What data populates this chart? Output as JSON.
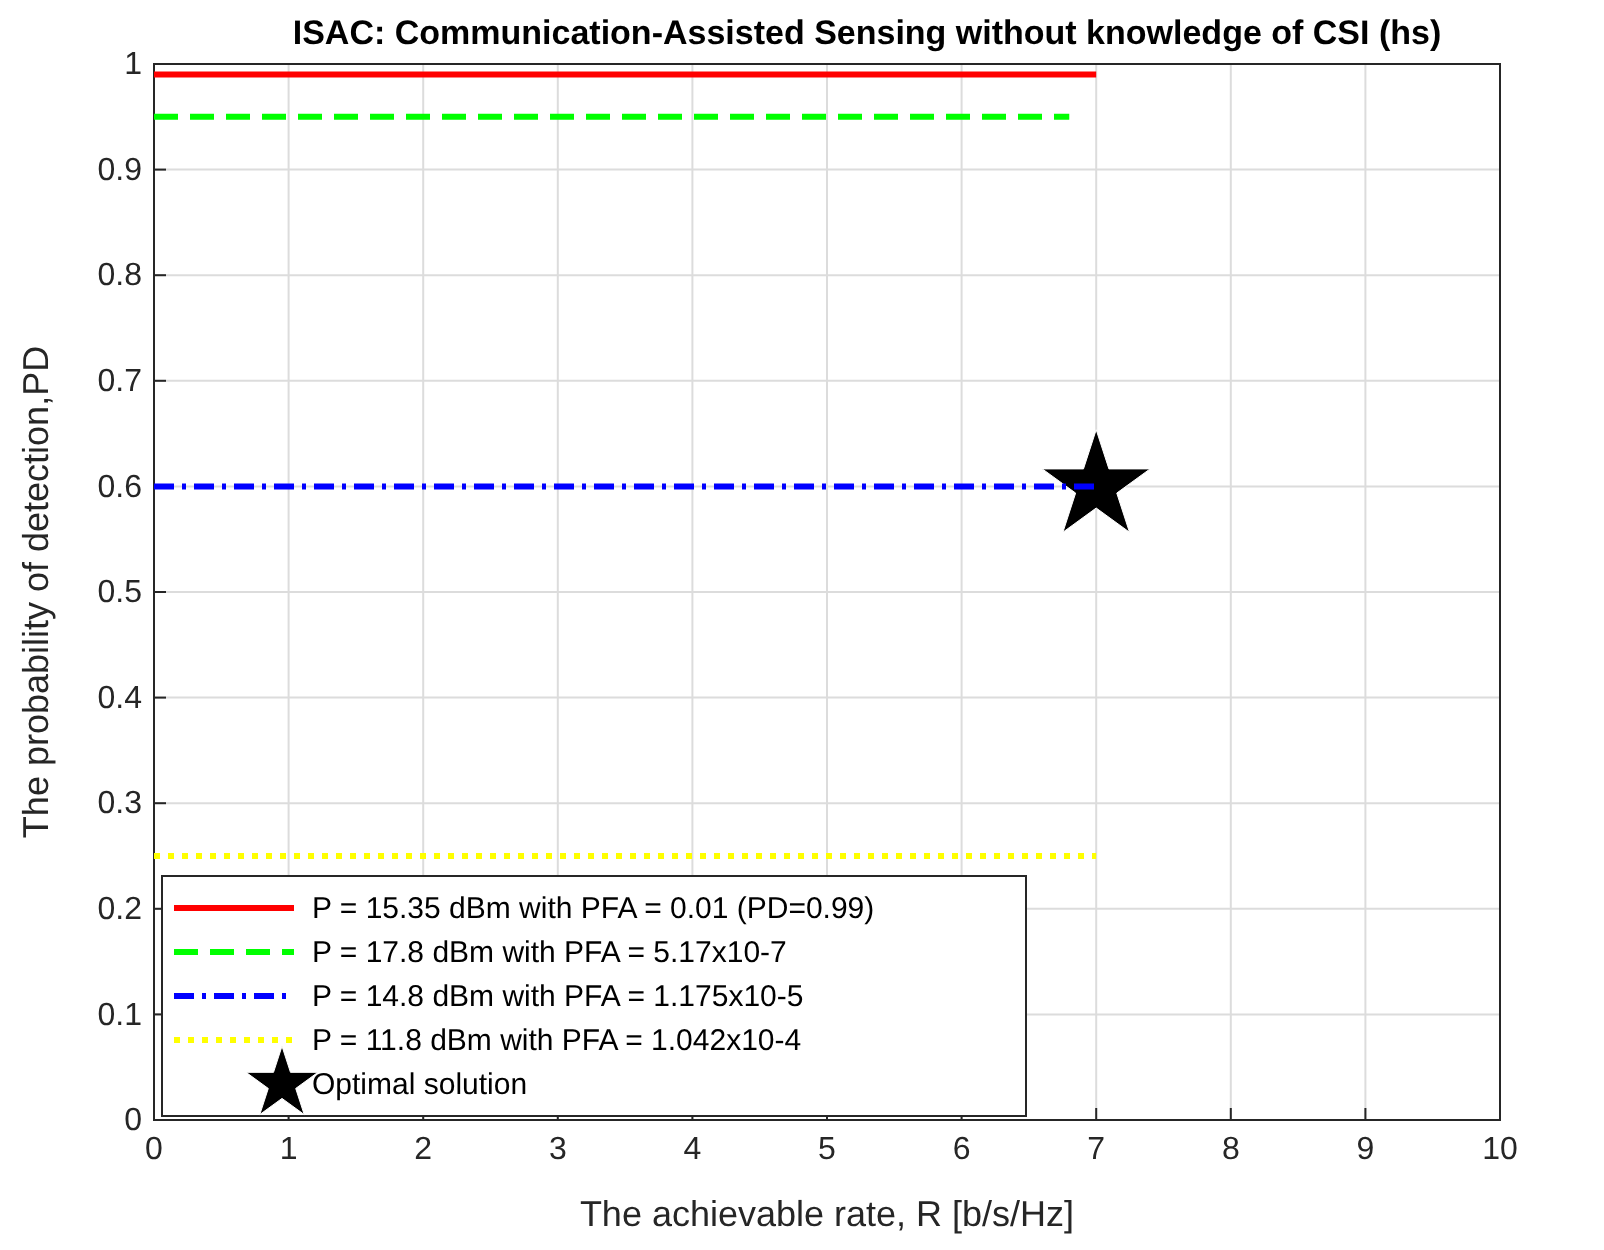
{
  "chart_data": {
    "type": "line",
    "title": "ISAC: Communication-Assisted Sensing without knowledge of CSI (hs)",
    "xlabel": "The achievable rate, R [b/s/Hz]",
    "ylabel": "The probability of detection,PD",
    "xlim": [
      0,
      10
    ],
    "ylim": [
      0,
      1
    ],
    "xticks": [
      0,
      1,
      2,
      3,
      4,
      5,
      6,
      7,
      8,
      9,
      10
    ],
    "yticks": [
      0,
      0.1,
      0.2,
      0.3,
      0.4,
      0.5,
      0.6,
      0.7,
      0.8,
      0.9,
      1
    ],
    "grid": true,
    "legend": "bottom left",
    "series": [
      {
        "name": "P = 15.35 dBm with PFA = 0.01 (PD=0.99)",
        "color": "#ff0000",
        "x": [
          0,
          7
        ],
        "values": [
          0.99,
          0.99
        ],
        "line_style": "solid"
      },
      {
        "name": "P = 17.8 dBm with PFA = 5.17x10-7",
        "color": "#00ff00",
        "x": [
          0,
          6.8
        ],
        "values": [
          0.95,
          0.95
        ],
        "line_style": "dashed"
      },
      {
        "name": "P = 14.8 dBm with PFA = 1.175x10-5",
        "color": "#0000ff",
        "x": [
          0,
          7
        ],
        "values": [
          0.6,
          0.6
        ],
        "line_style": "dashdot"
      },
      {
        "name": "P = 11.8 dBm with PFA = 1.042x10-4",
        "color": "#ffff00",
        "x": [
          0,
          7
        ],
        "values": [
          0.25,
          0.25
        ],
        "line_style": "dotted"
      },
      {
        "name": "Optimal solution",
        "type": "scatter",
        "marker": "star",
        "color": "#000000",
        "x": [
          7
        ],
        "values": [
          0.6
        ]
      }
    ]
  }
}
